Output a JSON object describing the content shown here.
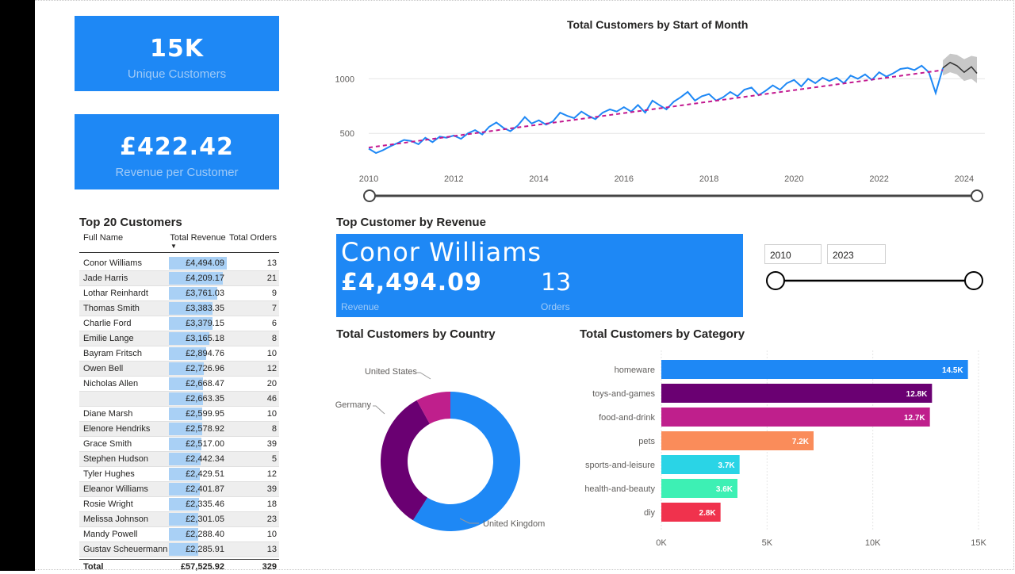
{
  "kpis": {
    "unique_customers": {
      "value": "15K",
      "label": "Unique Customers"
    },
    "revenue_per_customer": {
      "value": "£422.42",
      "label": "Revenue per Customer"
    }
  },
  "top_table": {
    "title": "Top 20 Customers",
    "headers": [
      "Full Name",
      "Total Revenue",
      "Total Orders"
    ],
    "rows": [
      {
        "name": "Conor Williams",
        "revenue": "£4,494.09",
        "orders": "13",
        "rev_num": 4494.09
      },
      {
        "name": "Jade Harris",
        "revenue": "£4,209.17",
        "orders": "21",
        "rev_num": 4209.17
      },
      {
        "name": "Lothar Reinhardt",
        "revenue": "£3,761.03",
        "orders": "9",
        "rev_num": 3761.03
      },
      {
        "name": "Thomas Smith",
        "revenue": "£3,383.35",
        "orders": "7",
        "rev_num": 3383.35
      },
      {
        "name": "Charlie Ford",
        "revenue": "£3,379.15",
        "orders": "6",
        "rev_num": 3379.15
      },
      {
        "name": "Emilie Lange",
        "revenue": "£3,165.18",
        "orders": "8",
        "rev_num": 3165.18
      },
      {
        "name": "Bayram Fritsch",
        "revenue": "£2,894.76",
        "orders": "10",
        "rev_num": 2894.76
      },
      {
        "name": "Owen Bell",
        "revenue": "£2,726.96",
        "orders": "12",
        "rev_num": 2726.96
      },
      {
        "name": "Nicholas Allen",
        "revenue": "£2,668.47",
        "orders": "20",
        "rev_num": 2668.47
      },
      {
        "name": "",
        "revenue": "£2,663.35",
        "orders": "46",
        "rev_num": 2663.35
      },
      {
        "name": "Diane Marsh",
        "revenue": "£2,599.95",
        "orders": "10",
        "rev_num": 2599.95
      },
      {
        "name": "Elenore Hendriks",
        "revenue": "£2,578.92",
        "orders": "8",
        "rev_num": 2578.92
      },
      {
        "name": "Grace Smith",
        "revenue": "£2,517.00",
        "orders": "39",
        "rev_num": 2517.0
      },
      {
        "name": "Stephen Hudson",
        "revenue": "£2,442.34",
        "orders": "5",
        "rev_num": 2442.34
      },
      {
        "name": "Tyler Hughes",
        "revenue": "£2,429.51",
        "orders": "12",
        "rev_num": 2429.51
      },
      {
        "name": "Eleanor Williams",
        "revenue": "£2,401.87",
        "orders": "39",
        "rev_num": 2401.87
      },
      {
        "name": "Rosie Wright",
        "revenue": "£2,335.46",
        "orders": "18",
        "rev_num": 2335.46
      },
      {
        "name": "Melissa Johnson",
        "revenue": "£2,301.05",
        "orders": "23",
        "rev_num": 2301.05
      },
      {
        "name": "Mandy Powell",
        "revenue": "£2,288.40",
        "orders": "10",
        "rev_num": 2288.4
      },
      {
        "name": "Gustav Scheuermann",
        "revenue": "£2,285.91",
        "orders": "13",
        "rev_num": 2285.91
      }
    ],
    "total": {
      "label": "Total",
      "revenue": "£57,525.92",
      "orders": "329"
    }
  },
  "top_customer": {
    "title": "Top Customer by Revenue",
    "name": "Conor Williams",
    "revenue": "£4,494.09",
    "revenue_label": "Revenue",
    "orders": "13",
    "orders_label": "Orders"
  },
  "year_slicer": {
    "from": "2010",
    "to": "2023"
  },
  "colors": {
    "accent": "#1e88f5",
    "line": "#1e88f5",
    "trend": "#c2188f",
    "forecast_band": "#c8c8c8",
    "germany": "#6a0072",
    "united_states": "#bf1f8c",
    "united_kingdom": "#1e88f5"
  },
  "chart_data": [
    {
      "type": "line",
      "title": "Total Customers by Start of Month",
      "x_ticks": [
        "2010",
        "2012",
        "2014",
        "2016",
        "2018",
        "2020",
        "2022",
        "2024"
      ],
      "y_ticks": [
        500,
        1000
      ],
      "ylim": [
        320,
        1250
      ],
      "xlim": [
        2010,
        2024.3
      ],
      "series": [
        {
          "values_by_year": [
            [
              2010.0,
              360
            ],
            [
              2010.17,
              320
            ],
            [
              2010.33,
              345
            ],
            [
              2010.5,
              380
            ],
            [
              2010.67,
              410
            ],
            [
              2010.83,
              440
            ],
            [
              2011.0,
              430
            ],
            [
              2011.17,
              400
            ],
            [
              2011.33,
              460
            ],
            [
              2011.5,
              420
            ],
            [
              2011.67,
              470
            ],
            [
              2011.83,
              460
            ],
            [
              2012.0,
              480
            ],
            [
              2012.17,
              450
            ],
            [
              2012.33,
              500
            ],
            [
              2012.5,
              530
            ],
            [
              2012.67,
              490
            ],
            [
              2012.83,
              560
            ],
            [
              2013.0,
              600
            ],
            [
              2013.17,
              550
            ],
            [
              2013.33,
              520
            ],
            [
              2013.5,
              570
            ],
            [
              2013.67,
              650
            ],
            [
              2013.83,
              590
            ],
            [
              2014.0,
              620
            ],
            [
              2014.17,
              580
            ],
            [
              2014.33,
              610
            ],
            [
              2014.5,
              690
            ],
            [
              2014.67,
              660
            ],
            [
              2014.83,
              640
            ],
            [
              2015.0,
              700
            ],
            [
              2015.17,
              660
            ],
            [
              2015.33,
              630
            ],
            [
              2015.5,
              690
            ],
            [
              2015.67,
              720
            ],
            [
              2015.83,
              700
            ],
            [
              2016.0,
              740
            ],
            [
              2016.17,
              700
            ],
            [
              2016.33,
              760
            ],
            [
              2016.5,
              690
            ],
            [
              2016.67,
              800
            ],
            [
              2016.83,
              760
            ],
            [
              2017.0,
              720
            ],
            [
              2017.17,
              790
            ],
            [
              2017.33,
              830
            ],
            [
              2017.5,
              880
            ],
            [
              2017.67,
              800
            ],
            [
              2017.83,
              840
            ],
            [
              2018.0,
              860
            ],
            [
              2018.17,
              800
            ],
            [
              2018.33,
              830
            ],
            [
              2018.5,
              880
            ],
            [
              2018.67,
              840
            ],
            [
              2018.83,
              900
            ],
            [
              2019.0,
              920
            ],
            [
              2019.17,
              850
            ],
            [
              2019.33,
              890
            ],
            [
              2019.5,
              940
            ],
            [
              2019.67,
              900
            ],
            [
              2019.83,
              960
            ],
            [
              2020.0,
              990
            ],
            [
              2020.17,
              930
            ],
            [
              2020.33,
              1000
            ],
            [
              2020.5,
              960
            ],
            [
              2020.67,
              1010
            ],
            [
              2020.83,
              980
            ],
            [
              2021.0,
              1010
            ],
            [
              2021.17,
              960
            ],
            [
              2021.33,
              1030
            ],
            [
              2021.5,
              1000
            ],
            [
              2021.67,
              1040
            ],
            [
              2021.83,
              990
            ],
            [
              2022.0,
              1060
            ],
            [
              2022.17,
              1020
            ],
            [
              2022.33,
              1050
            ],
            [
              2022.5,
              1090
            ],
            [
              2022.67,
              1100
            ],
            [
              2022.83,
              1080
            ],
            [
              2023.0,
              1120
            ],
            [
              2023.17,
              1060
            ],
            [
              2023.33,
              870
            ],
            [
              2023.5,
              1100
            ]
          ]
        },
        {
          "forecast_by_year": [
            [
              2023.5,
              1100
            ],
            [
              2023.67,
              1150
            ],
            [
              2023.83,
              1120
            ],
            [
              2024.0,
              1060
            ],
            [
              2024.17,
              1110
            ],
            [
              2024.3,
              1050
            ]
          ]
        },
        {
          "trend_by_year": [
            [
              2010.0,
              370
            ],
            [
              2023.5,
              1080
            ]
          ]
        }
      ],
      "forecast_band_by_year": [
        [
          2023.5,
          1030,
          1170
        ],
        [
          2023.67,
          1060,
          1230
        ],
        [
          2023.83,
          1040,
          1220
        ],
        [
          2024.0,
          980,
          1180
        ],
        [
          2024.17,
          1000,
          1210
        ],
        [
          2024.3,
          960,
          1200
        ]
      ],
      "range_slider": true
    },
    {
      "type": "pie",
      "title": "Total Customers by Country",
      "donut": true,
      "labels": [
        "United Kingdom",
        "Germany",
        "United States"
      ],
      "values": [
        59,
        33,
        8
      ]
    },
    {
      "type": "bar",
      "orientation": "horizontal",
      "title": "Total Customers by Category",
      "categories": [
        "homeware",
        "toys-and-games",
        "food-and-drink",
        "pets",
        "sports-and-leisure",
        "health-and-beauty",
        "diy"
      ],
      "values": [
        14500,
        12800,
        12700,
        7200,
        3700,
        3600,
        2800
      ],
      "data_labels": [
        "14.5K",
        "12.8K",
        "12.7K",
        "7.2K",
        "3.7K",
        "3.6K",
        "2.8K"
      ],
      "bar_colors": [
        "#1e88f5",
        "#6a0072",
        "#bf1f8c",
        "#fa8c5a",
        "#2ad4e6",
        "#3df0b4",
        "#f0324d"
      ],
      "x_ticks": [
        "0K",
        "5K",
        "10K",
        "15K"
      ],
      "xlim": [
        0,
        15000
      ]
    }
  ]
}
